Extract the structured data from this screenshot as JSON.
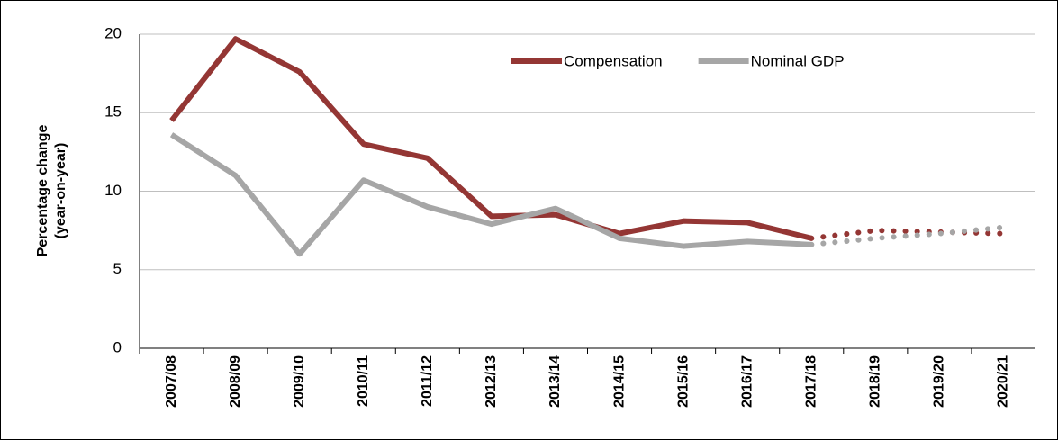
{
  "chart_data": {
    "type": "line",
    "y_label": [
      "Percentage change",
      "(year-on-year)"
    ],
    "categories": [
      "2007/08",
      "2008/09",
      "2009/10",
      "2010/11",
      "2011/12",
      "2012/13",
      "2013/14",
      "2014/15",
      "2015/16",
      "2016/17",
      "2017/18",
      "2018/19",
      "2019/20",
      "2020/21"
    ],
    "series": [
      {
        "name": "Compensation",
        "color": "#943634",
        "values": [
          14.5,
          19.7,
          17.6,
          13.0,
          12.1,
          8.4,
          8.5,
          7.3,
          8.1,
          8.0,
          7.0,
          7.5,
          7.4,
          7.3
        ]
      },
      {
        "name": "Nominal GDP",
        "color": "#a6a6a6",
        "values": [
          13.6,
          11.0,
          6.0,
          10.7,
          9.0,
          7.9,
          8.9,
          7.0,
          6.5,
          6.8,
          6.6,
          7.0,
          7.3,
          7.7
        ]
      }
    ],
    "forecast_start_index": 10,
    "ylim": [
      0,
      20
    ],
    "yticks": [
      0,
      5,
      10,
      15,
      20
    ],
    "grid": true,
    "legend": "top"
  }
}
